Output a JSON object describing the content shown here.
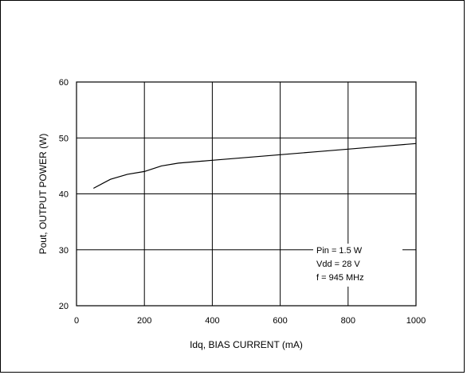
{
  "chart_data": {
    "type": "line",
    "title": "",
    "xlabel": "Idq, BIAS CURRENT  (mA)",
    "ylabel": "Pout, OUTPUT POWER  (W)",
    "xlim": [
      0,
      1000
    ],
    "ylim": [
      20,
      60
    ],
    "x_ticks": [
      0,
      200,
      400,
      600,
      800,
      1000
    ],
    "y_ticks": [
      20,
      30,
      40,
      50,
      60
    ],
    "grid": true,
    "series": [
      {
        "x": [
          50,
          100,
          150,
          200,
          250,
          300,
          400,
          500,
          600,
          700,
          800,
          900,
          1000
        ],
        "y": [
          41.0,
          42.6,
          43.5,
          44.0,
          45.0,
          45.5,
          46.0,
          46.5,
          47.0,
          47.5,
          48.0,
          48.5,
          49.0
        ]
      }
    ],
    "annotations": [
      "Pin = 1.5 W",
      "Vdd = 28 V",
      "f = 945 MHz"
    ]
  }
}
